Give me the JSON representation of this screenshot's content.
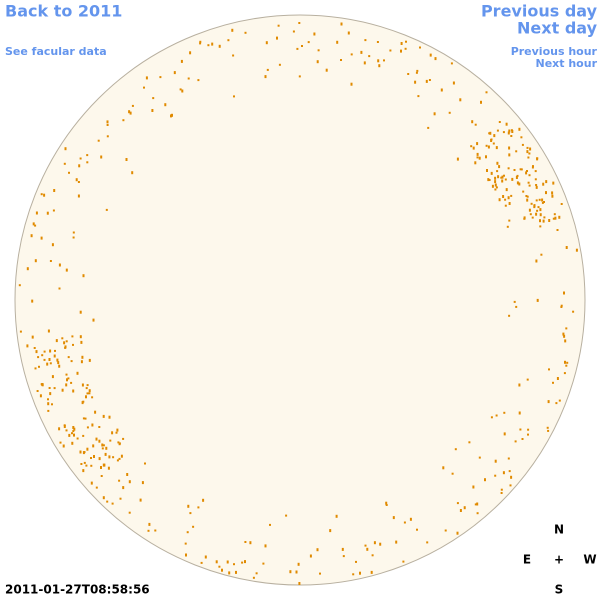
{
  "nav": {
    "back": "Back to 2011",
    "facular": "See facular data",
    "previous_day": "Previous day",
    "next_day": "Next day",
    "previous_hour": "Previous hour",
    "next_hour": "Next hour"
  },
  "timestamp": "2011-01-27T08:58:56",
  "compass": {
    "north": "N",
    "east": "E",
    "center": "+",
    "west": "W",
    "south": "S"
  }
}
